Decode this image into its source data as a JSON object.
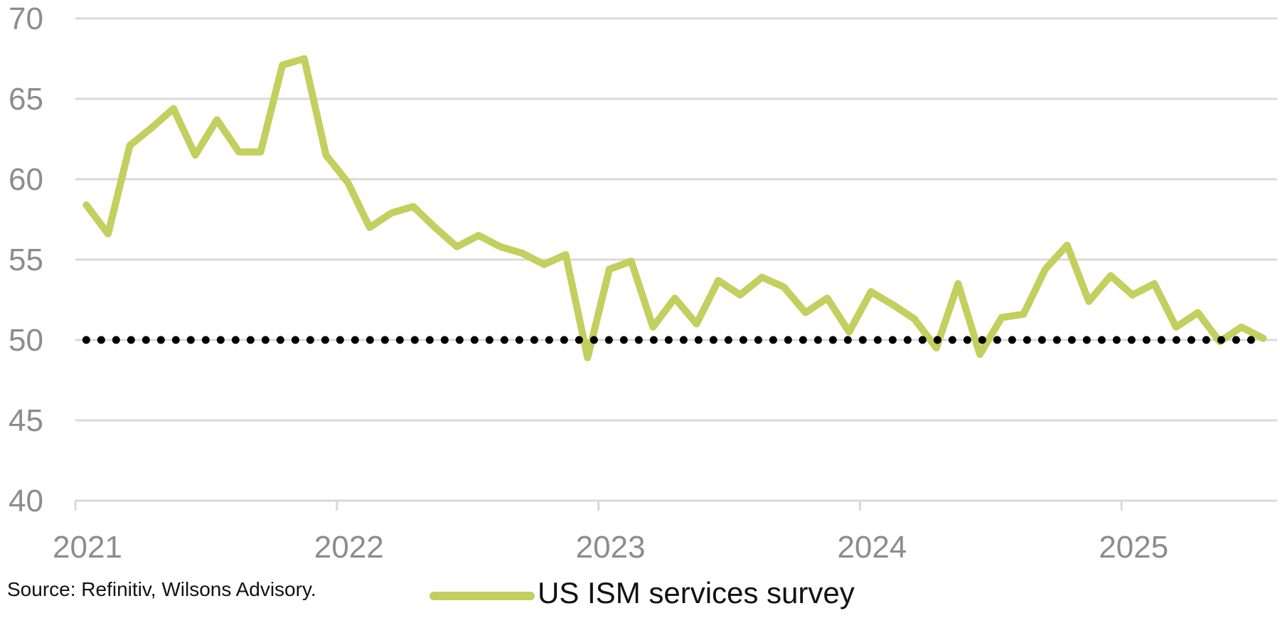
{
  "chart_data": {
    "type": "line",
    "title": "",
    "xlabel": "",
    "ylabel": "",
    "ylim": [
      40,
      70
    ],
    "yticks": [
      40,
      45,
      50,
      55,
      60,
      65,
      70
    ],
    "xlim": [
      "2021-01",
      "2025-07"
    ],
    "xticks": [
      "2021",
      "2022",
      "2023",
      "2024",
      "2025"
    ],
    "grid": "horizontal",
    "legend_position": "bottom",
    "x": [
      "2021-01",
      "2021-02",
      "2021-03",
      "2021-04",
      "2021-05",
      "2021-06",
      "2021-07",
      "2021-08",
      "2021-09",
      "2021-10",
      "2021-11",
      "2021-12",
      "2022-01",
      "2022-02",
      "2022-03",
      "2022-04",
      "2022-05",
      "2022-06",
      "2022-07",
      "2022-08",
      "2022-09",
      "2022-10",
      "2022-11",
      "2022-12",
      "2023-01",
      "2023-02",
      "2023-03",
      "2023-04",
      "2023-05",
      "2023-06",
      "2023-07",
      "2023-08",
      "2023-09",
      "2023-10",
      "2023-11",
      "2023-12",
      "2024-01",
      "2024-02",
      "2024-03",
      "2024-04",
      "2024-05",
      "2024-06",
      "2024-07",
      "2024-08",
      "2024-09",
      "2024-10",
      "2024-11",
      "2024-12",
      "2025-01",
      "2025-02",
      "2025-03",
      "2025-04",
      "2025-05",
      "2025-06",
      "2025-07"
    ],
    "series": [
      {
        "name": "US ISM services survey",
        "color": "#c3cf5e",
        "values": [
          58.4,
          56.6,
          62.1,
          63.2,
          64.4,
          61.5,
          63.7,
          61.7,
          61.7,
          67.1,
          67.5,
          61.5,
          59.8,
          57.0,
          57.9,
          58.3,
          57.0,
          55.8,
          56.5,
          55.8,
          55.4,
          54.7,
          55.3,
          48.9,
          54.4,
          54.9,
          50.8,
          52.6,
          51.0,
          53.7,
          52.8,
          53.9,
          53.3,
          51.7,
          52.6,
          50.5,
          53.0,
          52.2,
          51.3,
          49.5,
          53.5,
          49.1,
          51.4,
          51.6,
          54.4,
          55.9,
          52.4,
          54.0,
          52.8,
          53.5,
          50.8,
          51.7,
          49.9,
          50.8,
          50.1
        ]
      }
    ],
    "reference_line": {
      "value": 50,
      "style": "dotted",
      "color": "#000000"
    }
  },
  "colors": {
    "gridline": "#d9d9d9",
    "axis_text": "#8c8c8c",
    "series_line": "#c3cf5e",
    "reference_dots": "#000000",
    "text": "#111111"
  },
  "footer": {
    "source": "Source: Refinitiv, Wilsons Advisory."
  },
  "legend": {
    "label": "US ISM services survey"
  }
}
